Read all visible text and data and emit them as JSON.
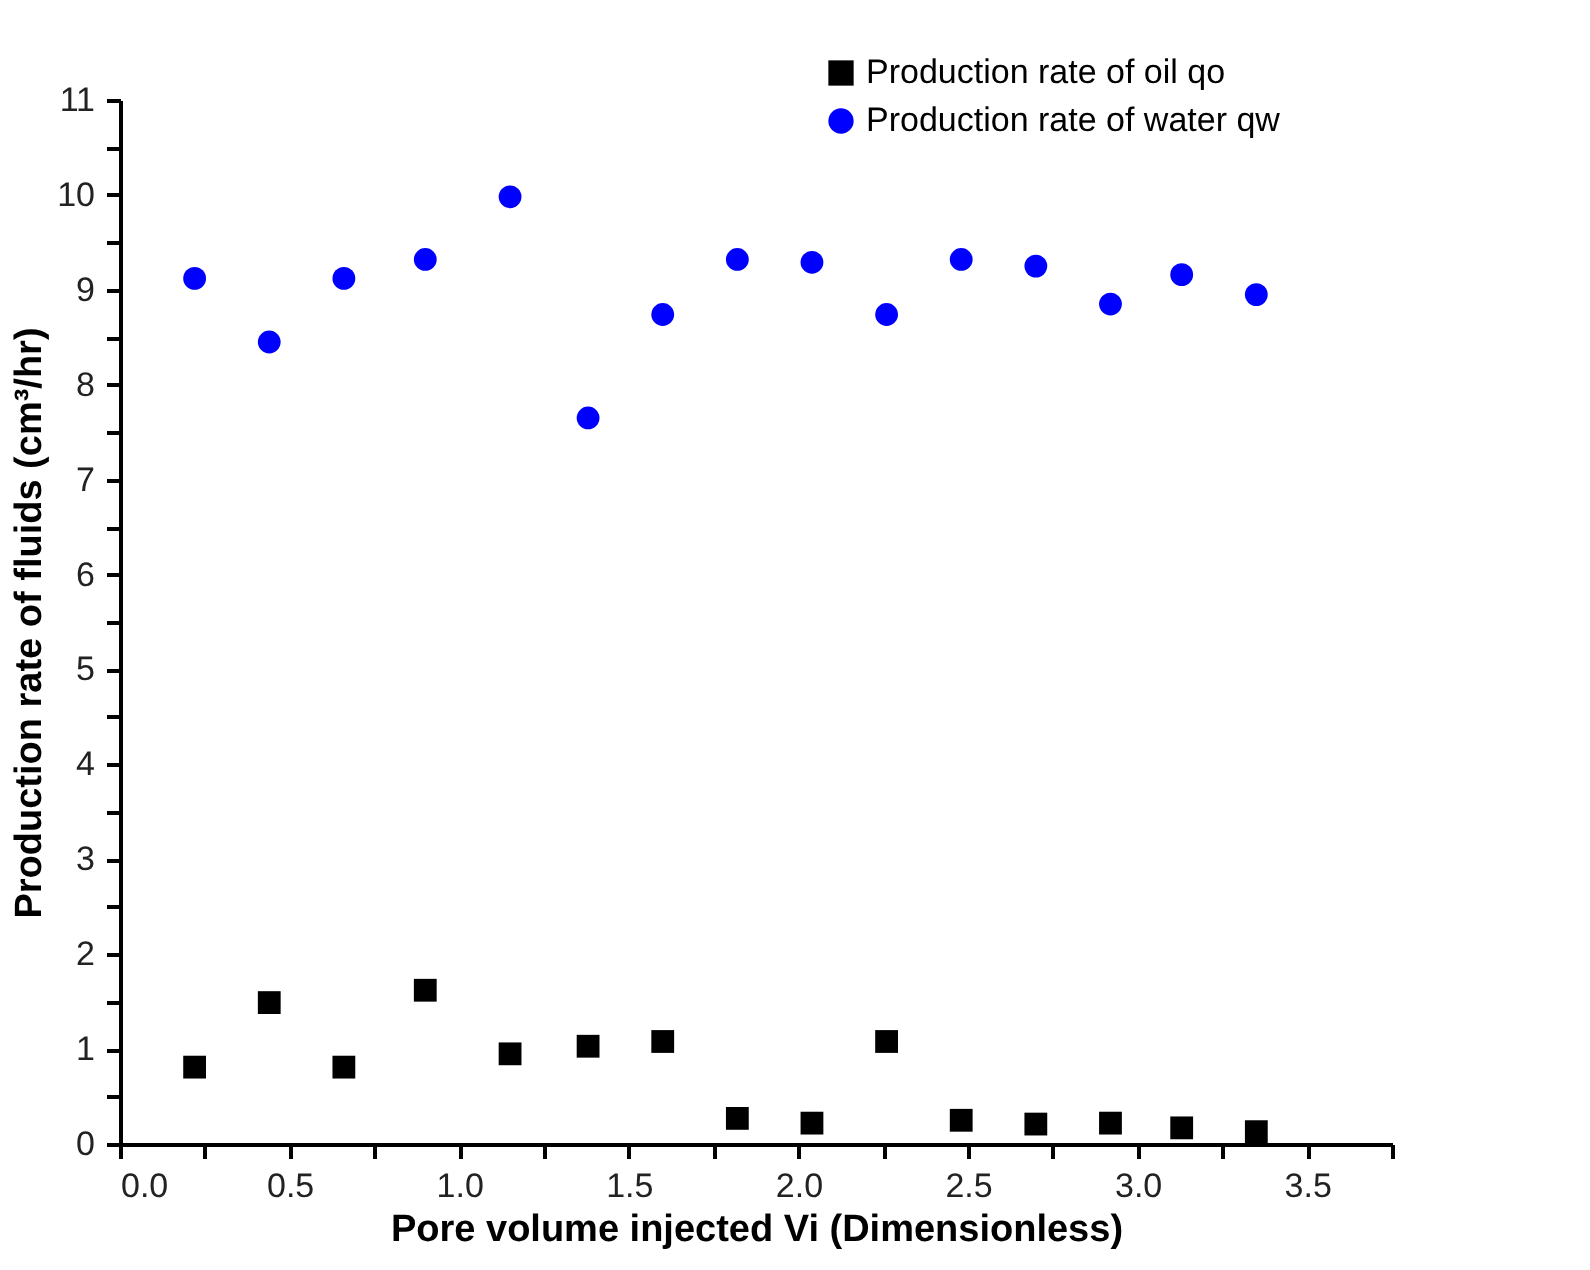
{
  "chart_data": {
    "type": "scatter",
    "xlabel": "Pore volume injected Vi (Dimensionless)",
    "ylabel": "Production rate of fluids (cm³/hr)",
    "x": [
      0.22,
      0.44,
      0.66,
      0.9,
      1.15,
      1.38,
      1.6,
      1.82,
      2.04,
      2.26,
      2.48,
      2.7,
      2.92,
      3.13,
      3.35
    ],
    "series": [
      {
        "name": "Production rate of oil qo",
        "color": "#000000",
        "marker": "square",
        "values": [
          0.81,
          1.49,
          0.81,
          1.62,
          0.95,
          1.03,
          1.08,
          0.27,
          0.22,
          1.08,
          0.25,
          0.21,
          0.22,
          0.17,
          0.13
        ]
      },
      {
        "name": "Production rate of water qw",
        "color": "#0000ff",
        "marker": "circle",
        "values": [
          9.12,
          8.45,
          9.12,
          9.32,
          9.98,
          7.65,
          8.74,
          9.32,
          9.29,
          8.74,
          9.32,
          9.25,
          8.85,
          9.16,
          8.95
        ]
      }
    ],
    "xlim": [
      0,
      3.75
    ],
    "xticks": [
      {
        "value": 0,
        "label": "0.0"
      },
      {
        "value": 0.25,
        "label": null
      },
      0.5,
      {
        "value": 0.75,
        "label": null
      },
      {
        "value": 1,
        "label": "1.0"
      },
      {
        "value": 1.25,
        "label": null
      },
      1.5,
      {
        "value": 1.75,
        "label": null
      },
      {
        "value": 2,
        "label": "2.0"
      },
      {
        "value": 2.25,
        "label": null
      },
      2.5,
      {
        "value": 2.75,
        "label": null
      },
      {
        "value": 3,
        "label": "3.0"
      },
      {
        "value": 3.25,
        "label": null
      },
      3.5,
      {
        "value": 3.75,
        "label": null
      }
    ],
    "ylim": [
      0,
      11
    ],
    "yticks": [
      0,
      {
        "value": 0.5,
        "label": null
      },
      1,
      {
        "value": 1.5,
        "label": null
      },
      2,
      {
        "value": 2.5,
        "label": null
      },
      3,
      {
        "value": 3.5,
        "label": null
      },
      4,
      {
        "value": 4.5,
        "label": null
      },
      5,
      {
        "value": 5.5,
        "label": null
      },
      6,
      {
        "value": 6.5,
        "label": null
      },
      7,
      {
        "value": 7.5,
        "label": null
      },
      8,
      {
        "value": 8.5,
        "label": null
      },
      9,
      {
        "value": 9.5,
        "label": null
      },
      10,
      {
        "value": 10.5,
        "label": null
      },
      11
    ],
    "grid": false,
    "legend": "top right"
  }
}
